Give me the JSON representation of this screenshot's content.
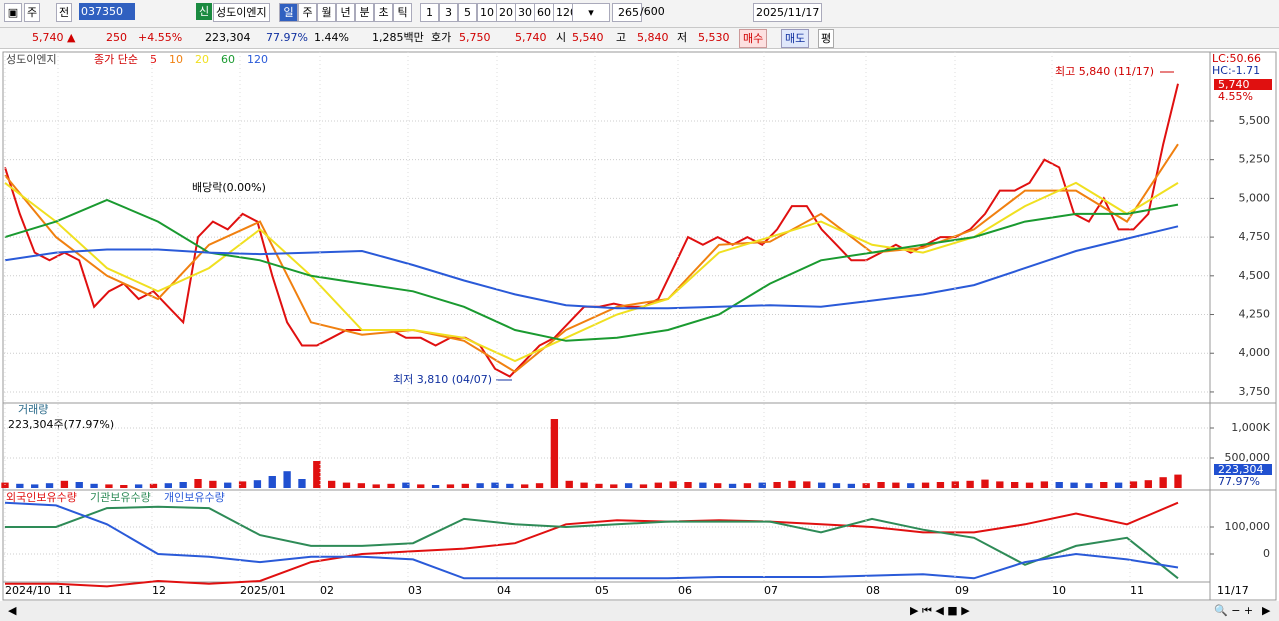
{
  "toolbar": {
    "period": "주",
    "prev": "전",
    "code": "037350",
    "credit": "신",
    "name": "성도이엔지",
    "units": [
      "일",
      "주",
      "월",
      "년",
      "분",
      "초",
      "틱"
    ],
    "intervals": [
      "1",
      "3",
      "5",
      "10",
      "20",
      "30",
      "60",
      "120"
    ],
    "count": "265",
    "max": "/600",
    "date": "2025/11/17"
  },
  "quote": {
    "price": "5,740 ▲",
    "change": "250",
    "rate": "+4.55%",
    "volume": "223,304",
    "vol_rate": "77.97%",
    "turnover": "1.44%",
    "amount": "1,285백만",
    "ask_label": "호가",
    "ask": "5,750",
    "bid": "5,740",
    "open_label": "시",
    "open": "5,540",
    "high_label": "고",
    "high": "5,840",
    "low_label": "저",
    "low": "5,530",
    "buy": "매수",
    "sell": "매도",
    "avg": "평"
  },
  "chart_data": [
    {
      "type": "line",
      "title": "성도이엔지",
      "subtitle": "종가 단순",
      "ylim": [
        3698,
        5926
      ],
      "yticks": [
        {
          "value": 5500,
          "label": "5,500"
        },
        {
          "value": 5250,
          "label": "5,250"
        },
        {
          "value": 5000,
          "label": "5,000"
        },
        {
          "value": 4750,
          "label": "4,750"
        },
        {
          "value": 4500,
          "label": "4,500"
        },
        {
          "value": 4250,
          "label": "4,250"
        },
        {
          "value": 4000,
          "label": "4,000"
        },
        {
          "value": 3750,
          "label": "3,750"
        }
      ],
      "grid": true,
      "series": [
        {
          "name": "5",
          "color": "#e01010",
          "values": [
            5200,
            4900,
            4650,
            4600,
            4650,
            4600,
            4300,
            4400,
            4450,
            4350,
            4400,
            4300,
            4200,
            4750,
            4850,
            4800,
            4900,
            4850,
            4500,
            4200,
            4050,
            4050,
            4100,
            4150,
            4150,
            4150,
            4150,
            4100,
            4100,
            4050,
            4100,
            4100,
            4050,
            3900,
            3850,
            3950,
            4050,
            4100,
            4200,
            4300,
            4300,
            4320,
            4300,
            4300,
            4350,
            4550,
            4750,
            4700,
            4750,
            4700,
            4750,
            4700,
            4800,
            4950,
            4950,
            4800,
            4700,
            4600,
            4600,
            4650,
            4700,
            4650,
            4700,
            4750,
            4750,
            4800,
            4900,
            5050,
            5050,
            5100,
            5250,
            5200,
            4900,
            4850,
            5000,
            4800,
            4800,
            4900,
            5350,
            5740
          ]
        },
        {
          "name": "10",
          "color": "#f08010",
          "values": [
            5150,
            4750,
            4500,
            4350,
            4700,
            4850,
            4200,
            4120,
            4150,
            4080,
            3880,
            4150,
            4300,
            4350,
            4700,
            4720,
            4900,
            4650,
            4680,
            4800,
            5050,
            5050,
            4850,
            5350
          ]
        },
        {
          "name": "20",
          "color": "#f0e020",
          "values": [
            5100,
            4850,
            4550,
            4400,
            4550,
            4800,
            4500,
            4150,
            4150,
            4100,
            3950,
            4100,
            4250,
            4350,
            4650,
            4750,
            4850,
            4700,
            4650,
            4750,
            4950,
            5100,
            4900,
            5100
          ]
        },
        {
          "name": "60",
          "color": "#1a9a30",
          "values": [
            4750,
            4850,
            4990,
            4850,
            4650,
            4600,
            4500,
            4450,
            4400,
            4300,
            4150,
            4080,
            4100,
            4150,
            4250,
            4450,
            4600,
            4650,
            4700,
            4750,
            4850,
            4900,
            4900,
            4960
          ]
        },
        {
          "name": "120",
          "color": "#2a5ad8",
          "values": [
            4600,
            4650,
            4670,
            4670,
            4650,
            4640,
            4650,
            4660,
            4570,
            4470,
            4380,
            4310,
            4290,
            4290,
            4300,
            4310,
            4300,
            4340,
            4380,
            4440,
            4550,
            4660,
            4740,
            4820
          ]
        }
      ],
      "annotations": {
        "high": "최고 5,840 (11/17)",
        "low": "최저 3,810 (04/07)",
        "dividend": "배당락(0.00%)",
        "lc": "LC:50.66",
        "hc": "HC:-1.71",
        "last": "5,740",
        "last_rate": "4.55%"
      },
      "x_labels": [
        "2024/10",
        "11",
        "12",
        "2025/01",
        "02",
        "03",
        "04",
        "05",
        "06",
        "07",
        "08",
        "09",
        "10",
        "11"
      ],
      "last_date": "11/17"
    },
    {
      "type": "bar",
      "title": "거래량",
      "subtitle": "223,304주(77.97%)",
      "ylim": [
        0,
        1383333
      ],
      "yticks": [
        {
          "value": 1000000,
          "label": "1,000K"
        },
        {
          "value": 500000,
          "label": "500,000"
        }
      ],
      "values": [
        90000,
        70000,
        60000,
        80000,
        120000,
        100000,
        70000,
        60000,
        50000,
        60000,
        70000,
        80000,
        100000,
        150000,
        120000,
        90000,
        110000,
        130000,
        200000,
        280000,
        150000,
        450000,
        120000,
        90000,
        80000,
        60000,
        70000,
        90000,
        60000,
        50000,
        60000,
        70000,
        80000,
        90000,
        70000,
        60000,
        80000,
        1150000,
        120000,
        90000,
        70000,
        60000,
        80000,
        60000,
        90000,
        110000,
        100000,
        90000,
        80000,
        70000,
        80000,
        90000,
        100000,
        120000,
        110000,
        90000,
        80000,
        70000,
        80000,
        100000,
        90000,
        80000,
        90000,
        100000,
        110000,
        120000,
        140000,
        110000,
        100000,
        90000,
        110000,
        100000,
        90000,
        80000,
        100000,
        90000,
        110000,
        130000,
        180000,
        223304
      ],
      "last_label": "223,304",
      "last_rate": "77.97%",
      "up_color": "#e01010",
      "down_color": "#2050d0"
    },
    {
      "type": "line",
      "ylim": [
        -96296,
        229630
      ],
      "yticks": [
        {
          "value": 100000,
          "label": "100,000"
        },
        0
      ],
      "series": [
        {
          "name": "외국인보유수량",
          "color": "#e01010",
          "values": [
            -110000,
            -110000,
            -120000,
            -100000,
            -110000,
            -100000,
            -30000,
            0,
            10000,
            20000,
            40000,
            110000,
            125000,
            120000,
            125000,
            120000,
            110000,
            100000,
            80000,
            80000,
            110000,
            150000,
            110000,
            190000
          ]
        },
        {
          "name": "기관보유수량",
          "color": "#2e8b57",
          "values": [
            100000,
            100000,
            170000,
            175000,
            170000,
            70000,
            30000,
            30000,
            40000,
            130000,
            110000,
            100000,
            110000,
            120000,
            120000,
            120000,
            80000,
            130000,
            90000,
            60000,
            -40000,
            30000,
            60000,
            -90000
          ]
        },
        {
          "name": "개인보유수량",
          "color": "#2a5ad8",
          "values": [
            190000,
            180000,
            110000,
            0,
            -10000,
            -30000,
            -10000,
            -10000,
            -20000,
            -90000,
            -90000,
            -90000,
            -90000,
            -90000,
            -85000,
            -85000,
            -85000,
            -80000,
            -75000,
            -90000,
            -30000,
            0,
            -20000,
            -50000
          ]
        }
      ]
    }
  ]
}
